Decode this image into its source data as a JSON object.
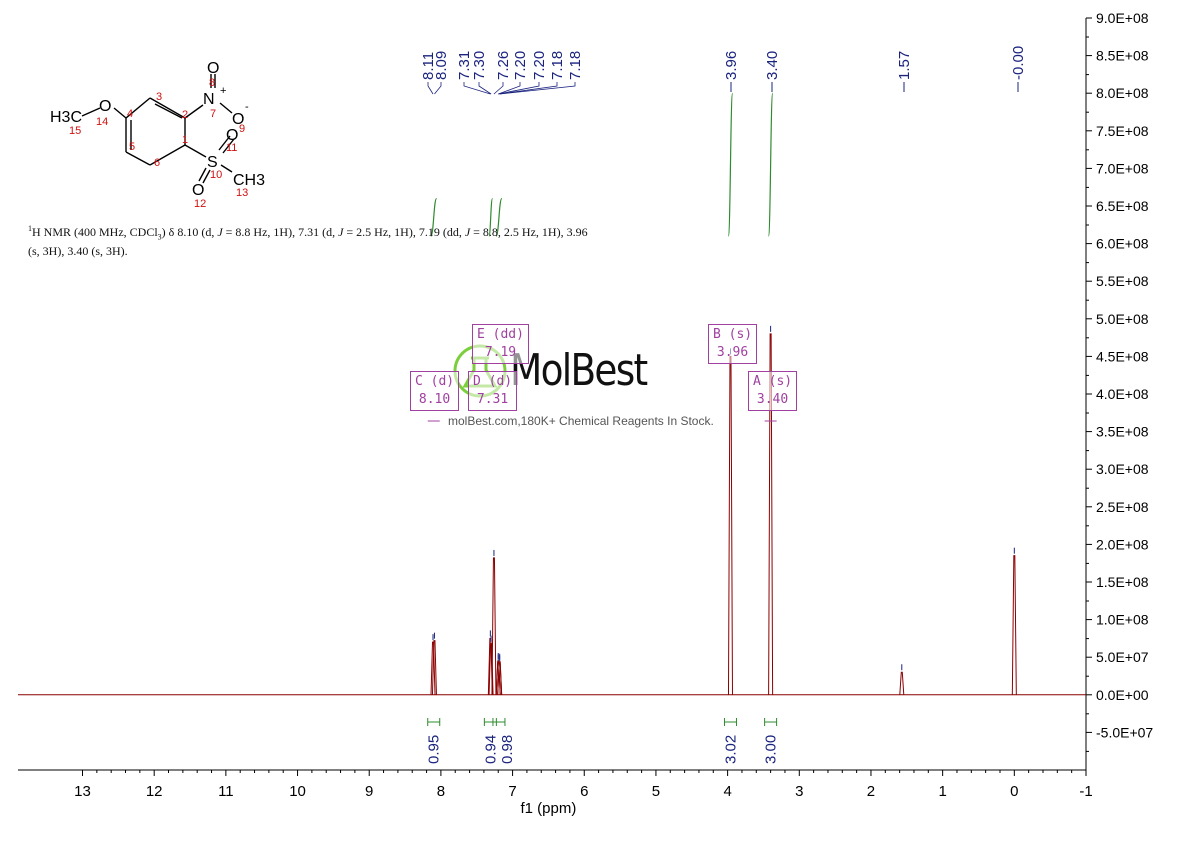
{
  "chart_data": {
    "type": "line",
    "xlabel": "f1 (ppm)",
    "xlim": [
      13.9,
      -1.0
    ],
    "ylim": [
      -100000000.0,
      900000000.0
    ],
    "x_ticks": [
      "13",
      "12",
      "11",
      "10",
      "9",
      "8",
      "7",
      "6",
      "5",
      "4",
      "3",
      "2",
      "1",
      "0",
      "-1"
    ],
    "y_ticks": [
      "-5.0E+07",
      "0.0E+00",
      "5.0E+07",
      "1.0E+08",
      "1.5E+08",
      "2.0E+08",
      "2.5E+08",
      "3.0E+08",
      "3.5E+08",
      "4.0E+08",
      "4.5E+08",
      "5.0E+08",
      "5.5E+08",
      "6.0E+08",
      "6.5E+08",
      "7.0E+08",
      "7.5E+08",
      "8.0E+08",
      "8.5E+08",
      "9.0E+08"
    ],
    "peaks": [
      {
        "ppm": 8.11,
        "height": 70000000.0
      },
      {
        "ppm": 8.09,
        "height": 72000000.0
      },
      {
        "ppm": 7.31,
        "height": 75000000.0
      },
      {
        "ppm": 7.3,
        "height": 68000000.0
      },
      {
        "ppm": 7.26,
        "height": 182000000.0
      },
      {
        "ppm": 7.2,
        "height": 45000000.0
      },
      {
        "ppm": 7.2,
        "height": 43000000.0
      },
      {
        "ppm": 7.18,
        "height": 44000000.0
      },
      {
        "ppm": 7.18,
        "height": 42000000.0
      },
      {
        "ppm": 3.96,
        "height": 450000000.0
      },
      {
        "ppm": 3.4,
        "height": 480000000.0
      },
      {
        "ppm": 1.57,
        "height": 30000000.0
      },
      {
        "ppm": 0.0,
        "height": 185000000.0
      }
    ],
    "peak_labels": [
      "8.11",
      "8.09",
      "7.31",
      "7.30",
      "7.26",
      "7.20",
      "7.20",
      "7.18",
      "7.18",
      "3.96",
      "3.40",
      "1.57",
      "-0.00"
    ],
    "integrals": [
      {
        "ppm": 8.1,
        "value": "0.95"
      },
      {
        "ppm": 7.31,
        "value": "0.94"
      },
      {
        "ppm": 7.19,
        "value": "0.98"
      },
      {
        "ppm": 3.96,
        "value": "3.02"
      },
      {
        "ppm": 3.4,
        "value": "3.00"
      }
    ],
    "integral_curves": [
      {
        "from": 8.14,
        "to": 8.06,
        "y_bottom": 610000000.0,
        "y_top": 660000000.0
      },
      {
        "from": 7.33,
        "to": 7.28,
        "y_bottom": 610000000.0,
        "y_top": 660000000.0
      },
      {
        "from": 7.23,
        "to": 7.15,
        "y_bottom": 610000000.0,
        "y_top": 660000000.0
      },
      {
        "from": 3.99,
        "to": 3.93,
        "y_bottom": 610000000.0,
        "y_top": 800000000.0
      },
      {
        "from": 3.43,
        "to": 3.37,
        "y_bottom": 610000000.0,
        "y_top": 800000000.0
      }
    ],
    "multiplets": [
      {
        "line1": "C (d)",
        "line2": "8.10"
      },
      {
        "line1": "D (d)",
        "line2": "7.31"
      },
      {
        "line1": "E (dd)",
        "line2": "7.19"
      },
      {
        "line1": "B (s)",
        "line2": "3.96"
      },
      {
        "line1": "A (s)",
        "line2": "3.40"
      }
    ],
    "grid": false
  },
  "description": {
    "p1": "H NMR (400 MHz, CDCl",
    "p2": ") δ 8.10 (d, ",
    "j": "J",
    "p3": " = 8.8 Hz, 1H), 7.31 (d, ",
    "p4": " = 2.5 Hz, 1H), 7.19 (dd, ",
    "p5": " = 8.8, 2.5 Hz, 1H), 3.96 (s, 3H), 3.40 (s, 3H).",
    "sup": "1",
    "sub": "3"
  },
  "watermark": {
    "brand": "MolBest",
    "tagline": "molBest.com,180K+ Chemical Reagents In Stock."
  },
  "molecule": {
    "atoms": {
      "o_methoxy": "O",
      "methyl": "H3C",
      "n": "N",
      "n_charge": "+",
      "o_nitro_top": "O",
      "o_nitro_right": "O",
      "o_charge": "-",
      "s": "S",
      "o_s_top": "O",
      "o_s_bottom": "O",
      "ch3": "CH3"
    },
    "numbers": [
      "1",
      "2",
      "3",
      "4",
      "5",
      "6",
      "7",
      "8",
      "9",
      "10",
      "11",
      "12",
      "13",
      "14",
      "15"
    ],
    "colors": {
      "numbers": "#d01010",
      "bonds": "#000000"
    }
  },
  "colors": {
    "spectrum": "#8b0000",
    "peak_label": "#1a237e",
    "integral_curve": "#2e8b2e",
    "integral_value": "#1a237e",
    "multiplet": "#a040a0"
  }
}
